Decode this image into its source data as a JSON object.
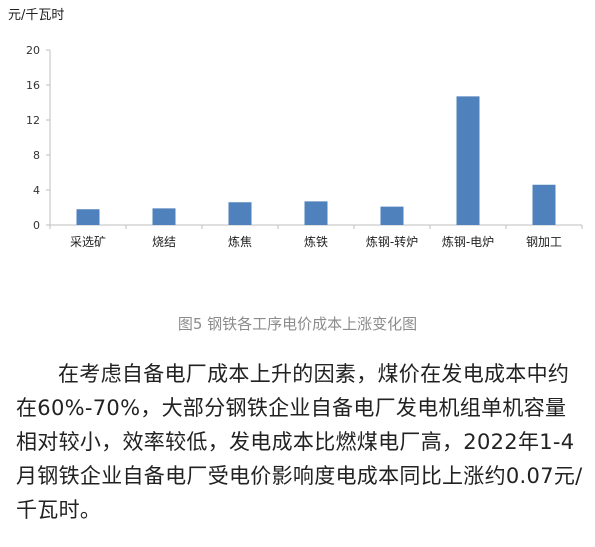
{
  "chart_data": {
    "type": "bar",
    "unit_label": "元/千瓦时",
    "categories": [
      "采选矿",
      "烧结",
      "炼焦",
      "炼铁",
      "炼钢-转炉",
      "炼钢-电炉",
      "钢加工"
    ],
    "values": [
      1.8,
      1.9,
      2.6,
      2.7,
      2.1,
      14.7,
      4.6
    ],
    "yticks": [
      0,
      4,
      8,
      12,
      16,
      20
    ],
    "ylim": [
      0,
      20
    ],
    "grid": false,
    "bar_color": "#4f81bd",
    "title": "",
    "xlabel": "",
    "ylabel": ""
  },
  "caption": "图5 钢铁各工序电价成本上涨变化图",
  "article": {
    "paragraph": "在考虑自备电厂成本上升的因素，煤价在发电成本中约在60%-70%，大部分钢铁企业自备电厂发电机组单机容量相对较小，效率较低，发电成本比燃煤电厂高，2022年1-4月钢铁企业自备电厂受电价影响度电成本同比上涨约0.07元/千瓦时。"
  }
}
